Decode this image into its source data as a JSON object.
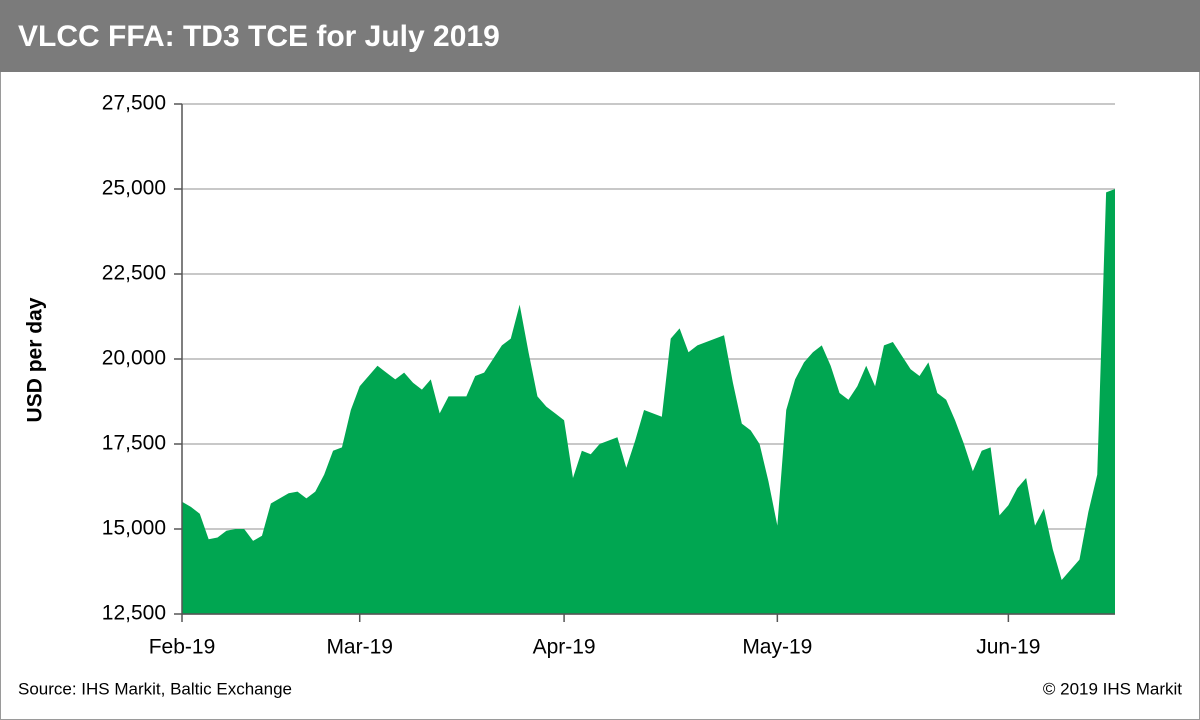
{
  "chart_data": {
    "type": "area",
    "title": "VLCC FFA: TD3 TCE for July 2019",
    "y_label": "USD per day",
    "source": "Source: IHS Markit, Baltic Exchange",
    "copyright": "© 2019 IHS Markit",
    "color": "#00a651",
    "grid": true,
    "ylim": [
      12500,
      27500
    ],
    "yticks": [
      {
        "value": 12500,
        "label": "12,500"
      },
      {
        "value": 15000,
        "label": "15,000"
      },
      {
        "value": 17500,
        "label": "17,500"
      },
      {
        "value": 20000,
        "label": "20,000"
      },
      {
        "value": 22500,
        "label": "22,500"
      },
      {
        "value": 25000,
        "label": "25,000"
      },
      {
        "value": 27500,
        "label": "27,500"
      }
    ],
    "categories": [
      "Feb-19",
      null,
      null,
      null,
      null,
      null,
      null,
      null,
      null,
      null,
      null,
      null,
      null,
      null,
      null,
      null,
      null,
      null,
      null,
      null,
      "Mar-19",
      null,
      null,
      null,
      null,
      null,
      null,
      null,
      null,
      null,
      null,
      null,
      null,
      null,
      null,
      null,
      null,
      null,
      null,
      null,
      null,
      null,
      null,
      "Apr-19",
      null,
      null,
      null,
      null,
      null,
      null,
      null,
      null,
      null,
      null,
      null,
      null,
      null,
      null,
      null,
      null,
      null,
      null,
      null,
      null,
      null,
      null,
      null,
      "May-19",
      null,
      null,
      null,
      null,
      null,
      null,
      null,
      null,
      null,
      null,
      null,
      null,
      null,
      null,
      null,
      null,
      null,
      null,
      null,
      null,
      null,
      null,
      null,
      null,
      null,
      "Jun-19",
      null,
      null,
      null,
      null,
      null,
      null,
      null,
      null,
      null,
      null,
      null,
      null
    ],
    "values": [
      15800,
      15650,
      15450,
      14700,
      14750,
      14950,
      15000,
      15000,
      14650,
      14800,
      15750,
      15900,
      16050,
      16100,
      15900,
      16100,
      16600,
      17300,
      17400,
      18500,
      19200,
      19500,
      19800,
      19600,
      19400,
      19600,
      19300,
      19100,
      19400,
      18400,
      18900,
      18900,
      18900,
      19500,
      19600,
      20000,
      20400,
      20600,
      21600,
      20200,
      18900,
      18600,
      18400,
      18200,
      16500,
      17300,
      17200,
      17500,
      17600,
      17700,
      16800,
      17600,
      18500,
      18400,
      18300,
      20600,
      20900,
      20200,
      20400,
      20500,
      20600,
      20700,
      19300,
      18100,
      17900,
      17500,
      16400,
      15100,
      18500,
      19400,
      19900,
      20200,
      20400,
      19800,
      19000,
      18800,
      19200,
      19800,
      19200,
      20400,
      20500,
      20100,
      19700,
      19500,
      19900,
      19000,
      18800,
      18200,
      17500,
      16700,
      17300,
      17400,
      15400,
      15700,
      16200,
      16500,
      15100,
      15600,
      14400,
      13500,
      13800,
      14100,
      15500,
      16600,
      24900,
      25000
    ]
  }
}
